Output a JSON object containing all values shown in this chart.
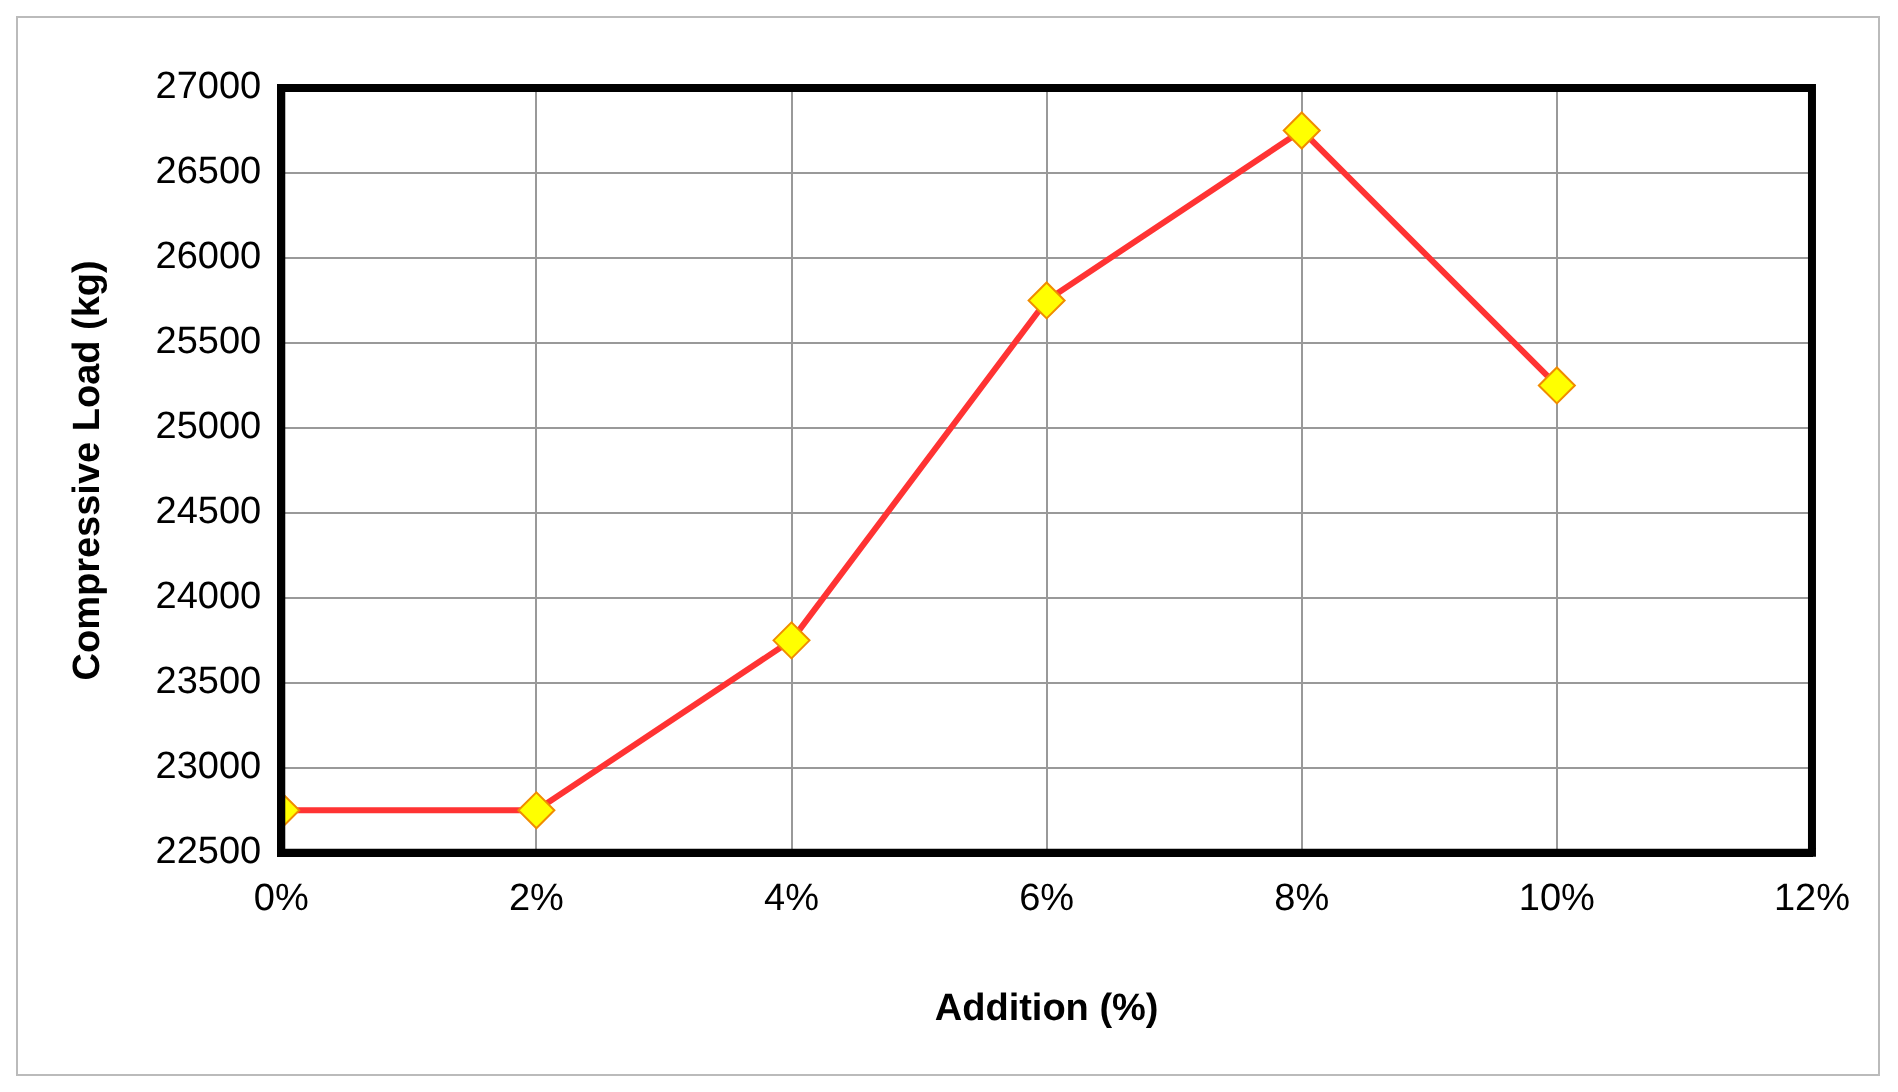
{
  "chart_data": {
    "type": "line",
    "xlabel": "Addition (%)",
    "ylabel": "Compressive Load (kg)",
    "x": [
      0,
      2,
      4,
      6,
      8,
      10
    ],
    "series": [
      {
        "color": "#ff3333",
        "values": [
          22750,
          22750,
          23750,
          25750,
          26750,
          25250
        ]
      }
    ],
    "xlim": [
      0,
      12
    ],
    "xticks": [
      {
        "value": 0,
        "label": "0%"
      },
      {
        "value": 2,
        "label": "2%"
      },
      {
        "value": 4,
        "label": "4%"
      },
      {
        "value": 6,
        "label": "6%"
      },
      {
        "value": 8,
        "label": "8%"
      },
      {
        "value": 10,
        "label": "10%"
      },
      {
        "value": 12,
        "label": "12%"
      }
    ],
    "ylim": [
      22500,
      27000
    ],
    "yticks": [
      22500,
      23000,
      23500,
      24000,
      24500,
      25000,
      25500,
      26000,
      26500,
      27000
    ],
    "grid": true,
    "marker": "diamond",
    "line_style": "solid",
    "legend": false
  }
}
